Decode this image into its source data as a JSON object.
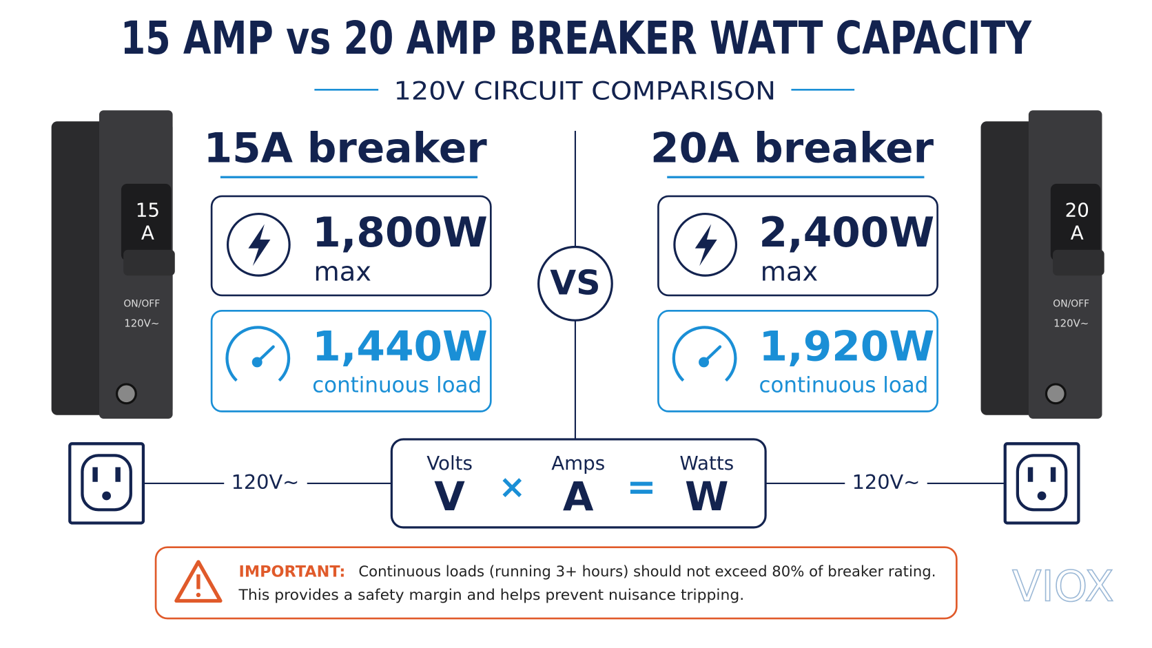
{
  "header": {
    "title": "15 AMP vs 20 AMP BREAKER WATT CAPACITY",
    "subtitle": "120V CIRCUIT COMPARISON"
  },
  "breakers": [
    {
      "label": "15A breaker",
      "device_rating": [
        "15",
        "A"
      ],
      "device_text": [
        "ON/OFF",
        "120V~"
      ],
      "max": {
        "value": "1,800W",
        "label": "max"
      },
      "continuous": {
        "value": "1,440W",
        "label": "continuous load"
      }
    },
    {
      "label": "20A breaker",
      "device_rating": [
        "20",
        "A"
      ],
      "device_text": [
        "ON/OFF",
        "120V~"
      ],
      "max": {
        "value": "2,400W",
        "label": "max"
      },
      "continuous": {
        "value": "1,920W",
        "label": "continuous load"
      }
    }
  ],
  "vs": "VS",
  "formula": {
    "terms": [
      {
        "name": "Volts",
        "symbol": "V"
      },
      {
        "name": "Amps",
        "symbol": "A"
      },
      {
        "name": "Watts",
        "symbol": "W"
      }
    ],
    "operators": [
      "×",
      "="
    ]
  },
  "outlet_voltage": [
    "120V~",
    "120V~"
  ],
  "note": {
    "label": "IMPORTANT:",
    "lines": [
      "Continuous loads (running 3+ hours) should not exceed 80% of breaker rating.",
      "This provides a safety margin and helps prevent nuisance tripping."
    ]
  },
  "logo": "VIOX"
}
